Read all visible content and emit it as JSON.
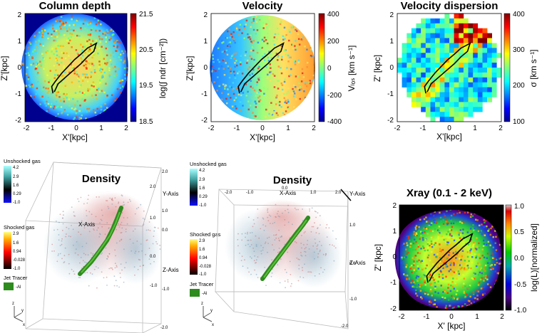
{
  "chart_data": [
    {
      "type": "heatmap",
      "title": "Column depth",
      "xlabel": "X'[kpc]",
      "ylabel": "Z'[kpc]",
      "xlim": [
        -2,
        2
      ],
      "ylim": [
        -2,
        2
      ],
      "xticks": [
        "-2",
        "-1",
        "0",
        "1",
        "2"
      ],
      "yticks": [
        "2",
        "1",
        "0",
        "-1",
        "-2"
      ],
      "colorbar": {
        "label": "log(∫ ndr [cm⁻²])",
        "range": [
          18.5,
          21.5
        ],
        "ticks": [
          "21.5",
          "20.5",
          "19.5",
          "18.5"
        ]
      },
      "colormap": "jet",
      "typical_value": 20.7
    },
    {
      "type": "heatmap",
      "title": "Velocity",
      "xlabel": "X'[kpc]",
      "ylabel": "Z'[kpc]",
      "xlim": [
        -2,
        2
      ],
      "ylim": [
        -2,
        2
      ],
      "xticks": [
        "-2",
        "-1",
        "0",
        "1",
        "2"
      ],
      "yticks": [
        "2",
        "1",
        "0",
        "-1",
        "-2"
      ],
      "colorbar": {
        "label": "Vₗₒₛ [km s⁻¹]",
        "range": [
          -400,
          400
        ],
        "ticks": [
          "400",
          "200",
          "0",
          "-200",
          "-400"
        ]
      },
      "colormap": "jet",
      "gradient_left_right": [
        -200,
        250
      ]
    },
    {
      "type": "heatmap",
      "title": "Velocity dispersion",
      "xlabel": "X'[kpc]",
      "ylabel": "Z' [kpc]",
      "xlim": [
        -2,
        2
      ],
      "ylim": [
        -2,
        2
      ],
      "xticks": [
        "-2",
        "-1",
        "0",
        "1",
        "2"
      ],
      "yticks": [
        "2",
        "1",
        "0",
        "-1",
        "-2"
      ],
      "colorbar": {
        "label": "σ [km s⁻¹]",
        "range": [
          100,
          400
        ],
        "ticks": [
          "400",
          "300",
          "200",
          "100"
        ]
      },
      "colormap": "jet"
    },
    {
      "type": "heatmap",
      "title": "Xray (0.1 - 2 keV)",
      "xlabel": "X' [kpc]",
      "ylabel": "Z' [kpc]",
      "xlim": [
        -2,
        2
      ],
      "ylim": [
        -2,
        2
      ],
      "xticks": [
        "-2",
        "-1",
        "0",
        "1",
        "2"
      ],
      "yticks": [
        "2",
        "1",
        "0",
        "-1",
        "-2"
      ],
      "colorbar": {
        "label": "log(L)[normalized]",
        "range": [
          -1.0,
          1.0
        ],
        "ticks": [
          "1.0",
          "0.5",
          "0.0",
          "-0.5",
          "-1.0"
        ]
      },
      "colormap": "spectral"
    }
  ],
  "jet_path": [
    [
      -0.9,
      -0.95
    ],
    [
      -0.95,
      -0.7
    ],
    [
      -0.8,
      -0.5
    ],
    [
      -0.55,
      -0.2
    ],
    [
      -0.3,
      0.05
    ],
    [
      -0.05,
      0.3
    ],
    [
      0.2,
      0.5
    ],
    [
      0.45,
      0.72
    ],
    [
      0.65,
      0.82
    ],
    [
      0.8,
      0.9
    ],
    [
      0.7,
      0.6
    ],
    [
      0.45,
      0.4
    ],
    [
      0.2,
      0.15
    ],
    [
      -0.1,
      -0.1
    ],
    [
      -0.4,
      -0.35
    ],
    [
      -0.7,
      -0.6
    ],
    [
      -0.85,
      -0.9
    ]
  ],
  "density_panels": [
    {
      "title": "Density",
      "legend": {
        "unshocked": {
          "label": "Unshocked gas",
          "ticks": [
            "4.2",
            "2.9",
            "1.6",
            "0.29",
            "-1.0"
          ]
        },
        "shocked": {
          "label": "Shocked gas",
          "ticks": [
            "2.9",
            "1.6",
            "0.94",
            "-0.028",
            "-1.0"
          ]
        },
        "tracer": {
          "label": "Jet Tracer",
          "value": "-Al"
        }
      },
      "axis_labels": {
        "x": "X-Axis",
        "y": "Y-Axis",
        "z": "Z-Axis"
      },
      "box_ticks_right": [
        "2.0",
        "1.0",
        "0.0",
        "-1.0",
        "-2.0"
      ],
      "box_ticks_other": [
        "2.0",
        "1.0",
        "0.0",
        "-1.0"
      ],
      "triad": {
        "z": "z",
        "y": "y",
        "x": "x"
      }
    },
    {
      "title": "Density",
      "legend": {
        "unshocked": {
          "label": "Unshocked gas",
          "ticks": [
            "4.2",
            "2.9",
            "1.6",
            "0.29",
            "-1.0"
          ]
        },
        "shocked": {
          "label": "Shocked gas",
          "ticks": [
            "2.9",
            "1.6",
            "0.94",
            "-0.028",
            "-1.0"
          ]
        },
        "tracer": {
          "label": "Jet Tracer",
          "value": "-Al"
        }
      },
      "axis_labels": {
        "x": "X-Axis",
        "y": "Y-Axis",
        "z": "Z-Axis"
      },
      "box_ticks_top": [
        "-2.0",
        "-1.0",
        "0.0",
        "1.0",
        "2.0"
      ],
      "box_ticks_right": [
        "1.0",
        "0.0",
        "-1.0",
        "-2.0"
      ],
      "triad": {
        "z": "z",
        "y": "y",
        "x": "x"
      }
    }
  ]
}
